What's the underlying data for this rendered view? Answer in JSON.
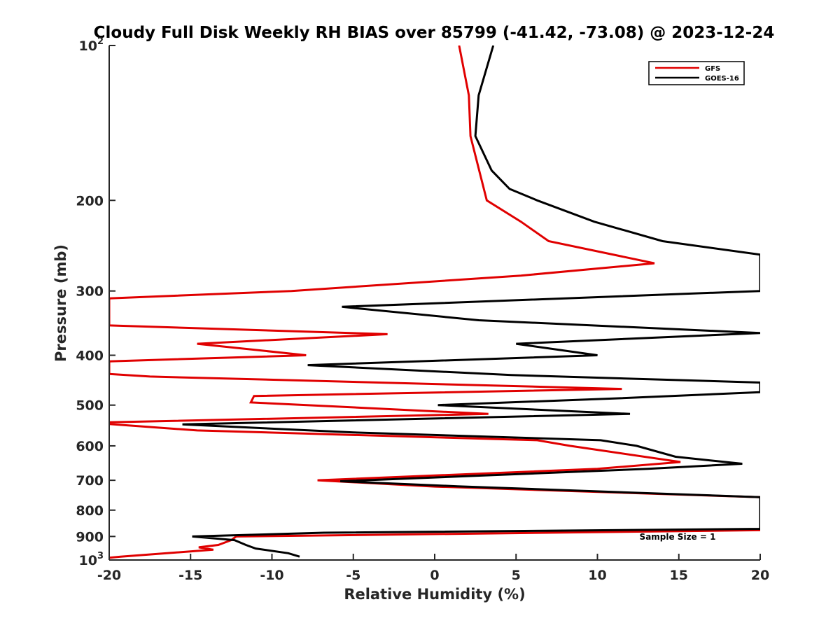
{
  "chart_data": {
    "type": "line",
    "title": "Cloudy Full Disk Weekly RH BIAS over 85799 (-41.42, -73.08) @ 2023-12-24",
    "xlabel": "Relative Humidity (%)",
    "ylabel": "Pressure (mb)",
    "xlim": [
      -20,
      20
    ],
    "ylim": [
      1000,
      100
    ],
    "y_scale": "log",
    "y_reversed": true,
    "x_ticks": [
      "-20",
      "-15",
      "-10",
      "-5",
      "0",
      "5",
      "10",
      "15",
      "20"
    ],
    "y_ticks": [
      {
        "value": 100,
        "label": "10",
        "sup": "2"
      },
      {
        "value": 200,
        "label": "200",
        "sup": ""
      },
      {
        "value": 300,
        "label": "300",
        "sup": ""
      },
      {
        "value": 400,
        "label": "400",
        "sup": ""
      },
      {
        "value": 500,
        "label": "500",
        "sup": ""
      },
      {
        "value": 600,
        "label": "600",
        "sup": ""
      },
      {
        "value": 700,
        "label": "700",
        "sup": ""
      },
      {
        "value": 800,
        "label": "800",
        "sup": ""
      },
      {
        "value": 900,
        "label": "900",
        "sup": ""
      },
      {
        "value": 1000,
        "label": "10",
        "sup": "3"
      }
    ],
    "grid": false,
    "legend_position": "top-right",
    "annotation": "Sample Size = 1",
    "series": [
      {
        "name": "GFS",
        "color": "#e00000",
        "points": [
          [
            1.5,
            100
          ],
          [
            2.1,
            125
          ],
          [
            2.2,
            150
          ],
          [
            3.2,
            200
          ],
          [
            5.3,
            220
          ],
          [
            7.0,
            240
          ],
          [
            13.5,
            265
          ],
          [
            5.3,
            280
          ],
          [
            -8.8,
            300
          ],
          [
            -20,
            310
          ],
          [
            -20,
            350
          ],
          [
            -2.9,
            364
          ],
          [
            -14.6,
            380
          ],
          [
            -7.9,
            400
          ],
          [
            -20,
            411
          ],
          [
            -20,
            435
          ],
          [
            -17.5,
            440
          ],
          [
            11.5,
            465
          ],
          [
            -11.1,
            480
          ],
          [
            -11.3,
            494
          ],
          [
            3.3,
            520
          ],
          [
            -20,
            540
          ],
          [
            -20,
            544
          ],
          [
            -14.6,
            560
          ],
          [
            6.3,
            585
          ],
          [
            8.3,
            600
          ],
          [
            15.1,
            645
          ],
          [
            10,
            665
          ],
          [
            -7.2,
            700
          ],
          [
            0,
            720
          ],
          [
            20,
            755
          ],
          [
            20,
            770
          ],
          [
            20,
            875
          ],
          [
            -12.2,
            900
          ],
          [
            -12.5,
            915
          ],
          [
            -13.3,
            935
          ],
          [
            -14.5,
            945
          ],
          [
            -13.6,
            955
          ],
          [
            -19.3,
            985
          ],
          [
            -20,
            990
          ]
        ]
      },
      {
        "name": "GOES-16",
        "color": "#000000",
        "points": [
          [
            3.6,
            100
          ],
          [
            2.7,
            125
          ],
          [
            2.5,
            150
          ],
          [
            3.5,
            175
          ],
          [
            4.6,
            190
          ],
          [
            6.3,
            200
          ],
          [
            9.8,
            220
          ],
          [
            14.0,
            240
          ],
          [
            20,
            255
          ],
          [
            20,
            300
          ],
          [
            -5.7,
            322
          ],
          [
            2.7,
            342
          ],
          [
            20,
            362
          ],
          [
            5.0,
            380
          ],
          [
            10.0,
            400
          ],
          [
            -7.8,
            418
          ],
          [
            4.7,
            437
          ],
          [
            20,
            452
          ],
          [
            20,
            472
          ],
          [
            11.3,
            485
          ],
          [
            0.2,
            500
          ],
          [
            12.0,
            520
          ],
          [
            -15.5,
            545
          ],
          [
            -5.0,
            565
          ],
          [
            10.2,
            585
          ],
          [
            12.4,
            600
          ],
          [
            14.8,
            630
          ],
          [
            18.9,
            650
          ],
          [
            13.1,
            665
          ],
          [
            -5.8,
            703
          ],
          [
            1.4,
            719
          ],
          [
            20,
            755
          ],
          [
            20,
            870
          ],
          [
            -6.8,
            885
          ],
          [
            -14.9,
            900
          ],
          [
            -12.3,
            915
          ],
          [
            -11.6,
            935
          ],
          [
            -11.0,
            950
          ],
          [
            -9.0,
            970
          ],
          [
            -8.3,
            985
          ]
        ]
      }
    ]
  }
}
